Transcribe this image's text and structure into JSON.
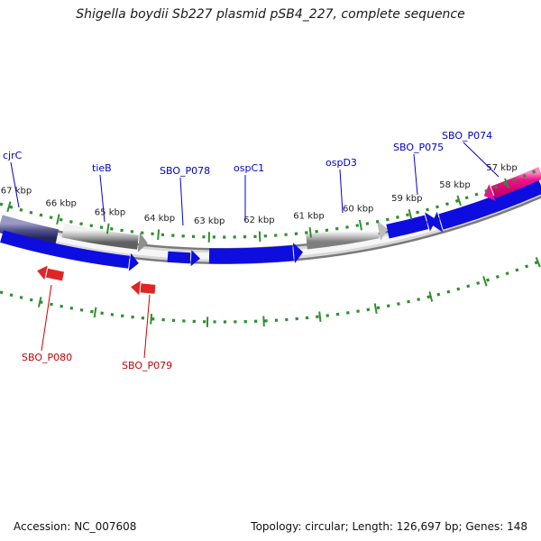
{
  "title": "Shigella boydii Sb227 plasmid pSB4_227, complete sequence",
  "footer": {
    "accession": "Accession: NC_007608",
    "topology": "Topology: circular; Length: 126,697 bp; Genes: 148"
  },
  "gene_labels": [
    {
      "text": "cjrC"
    },
    {
      "text": "tieB"
    },
    {
      "text": "SBO_P078"
    },
    {
      "text": "ospC1"
    },
    {
      "text": "ospD3"
    },
    {
      "text": "SBO_P075"
    },
    {
      "text": "SBO_P074"
    }
  ],
  "reverse_gene_labels": [
    {
      "text": "SBO_P080"
    },
    {
      "text": "SBO_P079"
    }
  ],
  "ruler": {
    "ticks": [
      {
        "label": "67 kbp"
      },
      {
        "label": "66 kbp"
      },
      {
        "label": "65 kbp"
      },
      {
        "label": "64 kbp"
      },
      {
        "label": "63 kbp"
      },
      {
        "label": "62 kbp"
      },
      {
        "label": "61 kbp"
      },
      {
        "label": "60 kbp"
      },
      {
        "label": "59 kbp"
      },
      {
        "label": "58 kbp"
      },
      {
        "label": "57 kbp"
      }
    ]
  },
  "colors": {
    "gene_blue": "#0d0de0",
    "gene_red": "#e02525",
    "gene_magenta": "#e8138a",
    "label_blue": "#0000c8",
    "label_red": "#cc0000",
    "tick_green": "#2f8f2f",
    "backbone_gray": "#7a7a7a"
  }
}
